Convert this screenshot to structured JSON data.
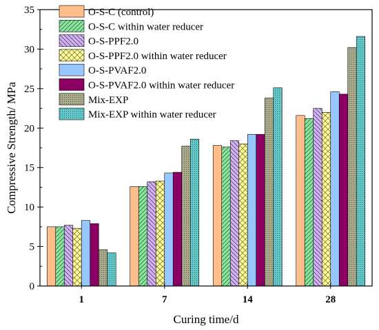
{
  "chart_data": {
    "type": "bar",
    "title": "",
    "xlabel": "Curing time/d",
    "ylabel": "Compressive Strength/ MPa",
    "categories": [
      "1",
      "7",
      "14",
      "28"
    ],
    "ylim": [
      0,
      35
    ],
    "yticks": [
      "0",
      "5",
      "10",
      "15",
      "20",
      "25",
      "30",
      "35"
    ],
    "legend_position": "top-left",
    "grid": false,
    "series": [
      {
        "name": "O-S-C (control)",
        "values": [
          7.5,
          12.6,
          17.8,
          21.6
        ],
        "color": "#FFBE8C",
        "pattern": "solid"
      },
      {
        "name": "O-S-C within water reducer",
        "values": [
          7.5,
          12.6,
          17.6,
          21.2
        ],
        "color": "#8CE6A0",
        "pattern": "diag-right"
      },
      {
        "name": "O-S-PPF2.0",
        "values": [
          7.7,
          13.2,
          18.4,
          22.5
        ],
        "color": "#D2B4F0",
        "pattern": "diag-left"
      },
      {
        "name": "O-S-PPF2.0 within water reducer",
        "values": [
          7.3,
          13.3,
          18.0,
          22.0
        ],
        "color": "#FFFA9B",
        "pattern": "cross"
      },
      {
        "name": "O-S-PVAF2.0",
        "values": [
          8.3,
          14.3,
          19.2,
          24.6
        ],
        "color": "#96C8FF",
        "pattern": "solid"
      },
      {
        "name": "O-S-PVAF2.0 within water reducer",
        "values": [
          7.9,
          14.4,
          19.2,
          24.3
        ],
        "color": "#8C0064",
        "pattern": "solid"
      },
      {
        "name": "Mix-EXP",
        "values": [
          4.6,
          17.7,
          23.8,
          30.2
        ],
        "color": "#AAAA8C",
        "pattern": "dots"
      },
      {
        "name": "Mix-EXP within water reducer",
        "values": [
          4.2,
          18.6,
          25.1,
          31.6
        ],
        "color": "#64C8C8",
        "pattern": "dots"
      }
    ]
  }
}
